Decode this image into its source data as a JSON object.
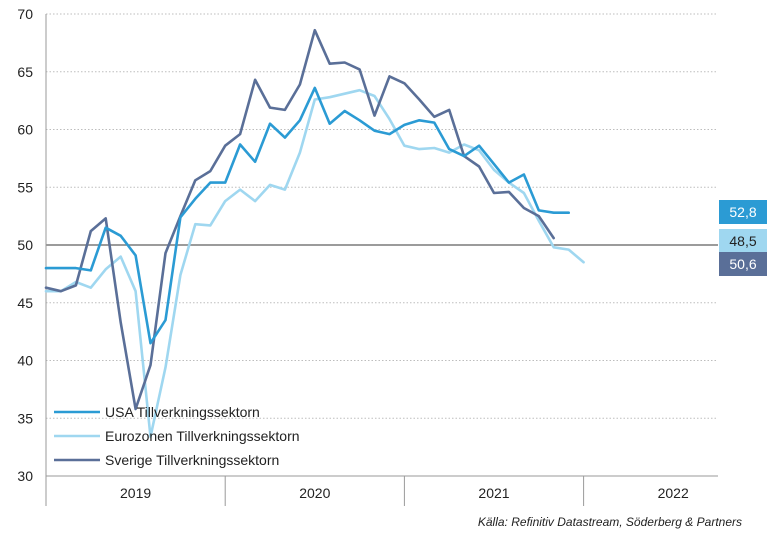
{
  "chart_data": {
    "type": "line",
    "title": "",
    "xlabel": "",
    "ylabel": "",
    "ylim": [
      30,
      70
    ],
    "yticks": [
      30,
      35,
      40,
      45,
      50,
      55,
      60,
      65,
      70
    ],
    "reference_line": 50,
    "grid": "horizontal dotted",
    "legend_position": "bottom-left",
    "x_start": "2019-01",
    "x_end": "2022-10",
    "year_labels": [
      {
        "label": "2019",
        "month": "2019-07"
      },
      {
        "label": "2020",
        "month": "2020-07"
      },
      {
        "label": "2021",
        "month": "2021-07"
      },
      {
        "label": "2022",
        "month": "2022-07"
      }
    ],
    "series": [
      {
        "name": "USA Tillverkningssektorn",
        "color": "#2b9bd4",
        "end_label": "52,8",
        "start": "2019-01",
        "values": [
          48.0,
          48.0,
          48.0,
          47.8,
          51.5,
          50.8,
          49.1,
          41.5,
          43.5,
          52.4,
          54.0,
          55.4,
          55.4,
          58.7,
          57.2,
          60.5,
          59.3,
          60.8,
          63.6,
          60.5,
          61.6,
          60.8,
          59.9,
          59.6,
          60.4,
          60.8,
          60.6,
          58.3,
          57.7,
          58.6,
          57.0,
          55.4,
          56.1,
          53.0,
          52.8,
          52.8
        ]
      },
      {
        "name": "Eurozonen Tillverkningssektorn",
        "color": "#9fd7f0",
        "end_label": "48,5",
        "start": "2019-01",
        "values": [
          46.0,
          46.0,
          46.8,
          46.3,
          47.9,
          49.0,
          46.0,
          33.4,
          39.4,
          47.4,
          51.8,
          51.7,
          53.8,
          54.8,
          53.8,
          55.2,
          54.8,
          58.0,
          62.6,
          62.8,
          63.1,
          63.4,
          62.9,
          60.9,
          58.6,
          58.3,
          58.4,
          58.0,
          58.7,
          58.2,
          56.5,
          55.4,
          54.5,
          52.1,
          49.8,
          49.6,
          48.5
        ]
      },
      {
        "name": "Sverige Tillverkningssektorn",
        "color": "#5a6f98",
        "end_label": "50,6",
        "start": "2019-01",
        "values": [
          46.3,
          46.0,
          46.5,
          51.2,
          52.3,
          43.3,
          35.8,
          39.6,
          49.3,
          52.5,
          55.6,
          56.4,
          58.6,
          59.6,
          64.3,
          61.9,
          61.7,
          63.9,
          68.6,
          65.7,
          65.8,
          65.2,
          61.2,
          64.6,
          64.0,
          62.6,
          61.1,
          61.7,
          57.7,
          56.8,
          54.5,
          54.6,
          53.2,
          52.5,
          50.6
        ]
      }
    ]
  },
  "source": "Källa: Refinitiv Datastream, Söderberg & Partners"
}
